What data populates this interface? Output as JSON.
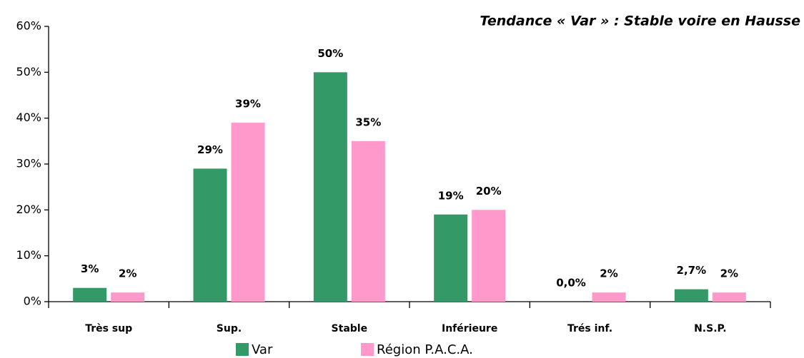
{
  "chart_data": {
    "type": "bar",
    "title": "Tendance « Var » : Stable voire en Hausse",
    "categories": [
      "Très sup",
      "Sup.",
      "Stable",
      "Inférieure",
      "Trés inf.",
      "N.S.P."
    ],
    "series": [
      {
        "name": "Var",
        "color": "#339966",
        "values": [
          3,
          29,
          50,
          19,
          0,
          2.7
        ],
        "value_labels": [
          "3%",
          "29%",
          "50%",
          "19%",
          "0,0%",
          "2,7%"
        ]
      },
      {
        "name": "Région P.A.C.A.",
        "color": "#ff99cc",
        "values": [
          2,
          39,
          35,
          20,
          2,
          2
        ],
        "value_labels": [
          "2%",
          "39%",
          "35%",
          "20%",
          "2%",
          "2%"
        ]
      }
    ],
    "ylim": [
      0,
      60
    ],
    "yticks": [
      {
        "value": 0,
        "label": "0%"
      },
      {
        "value": 10,
        "label": "10%"
      },
      {
        "value": 20,
        "label": "20%"
      },
      {
        "value": 30,
        "label": "30%"
      },
      {
        "value": 40,
        "label": "40%"
      },
      {
        "value": 50,
        "label": "50%"
      },
      {
        "value": 60,
        "label": "60%"
      }
    ],
    "legend": "bottom"
  }
}
